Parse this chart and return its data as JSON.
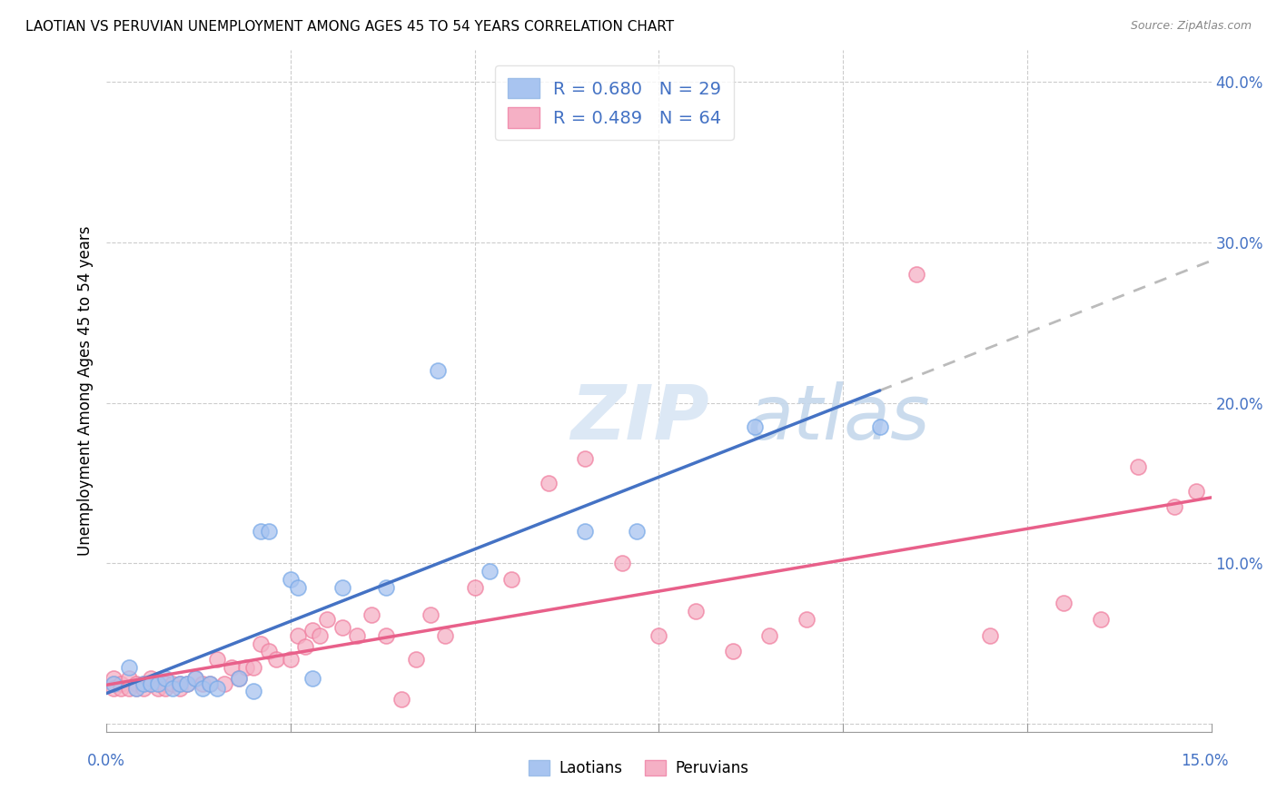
{
  "title": "LAOTIAN VS PERUVIAN UNEMPLOYMENT AMONG AGES 45 TO 54 YEARS CORRELATION CHART",
  "source": "Source: ZipAtlas.com",
  "ylabel": "Unemployment Among Ages 45 to 54 years",
  "xlim": [
    0.0,
    0.15
  ],
  "ylim": [
    -0.005,
    0.42
  ],
  "laotian_color": "#a8c4f0",
  "laotian_edge_color": "#7aaae8",
  "peruvian_color": "#f5b0c5",
  "peruvian_edge_color": "#f080a0",
  "laotian_line_color": "#4472c4",
  "peruvian_line_color": "#e8608a",
  "dash_line_color": "#bbbbbb",
  "r_laotian": 0.68,
  "n_laotian": 29,
  "r_peruvian": 0.489,
  "n_peruvian": 64,
  "legend_label_laotian": "Laotians",
  "legend_label_peruvian": "Peruvians",
  "laotian_x": [
    0.001,
    0.003,
    0.004,
    0.005,
    0.006,
    0.007,
    0.008,
    0.009,
    0.01,
    0.011,
    0.012,
    0.013,
    0.014,
    0.015,
    0.018,
    0.02,
    0.021,
    0.022,
    0.025,
    0.026,
    0.028,
    0.032,
    0.038,
    0.045,
    0.052,
    0.065,
    0.072,
    0.088,
    0.105
  ],
  "laotian_y": [
    0.025,
    0.035,
    0.022,
    0.025,
    0.025,
    0.025,
    0.028,
    0.022,
    0.025,
    0.025,
    0.028,
    0.022,
    0.025,
    0.022,
    0.028,
    0.02,
    0.12,
    0.12,
    0.09,
    0.085,
    0.028,
    0.085,
    0.085,
    0.22,
    0.095,
    0.12,
    0.12,
    0.185,
    0.185
  ],
  "peruvian_x": [
    0.001,
    0.001,
    0.001,
    0.002,
    0.002,
    0.003,
    0.003,
    0.004,
    0.004,
    0.005,
    0.005,
    0.006,
    0.006,
    0.007,
    0.007,
    0.008,
    0.008,
    0.009,
    0.01,
    0.01,
    0.011,
    0.012,
    0.013,
    0.014,
    0.015,
    0.016,
    0.017,
    0.018,
    0.019,
    0.02,
    0.021,
    0.022,
    0.023,
    0.025,
    0.026,
    0.027,
    0.028,
    0.029,
    0.03,
    0.032,
    0.034,
    0.036,
    0.038,
    0.04,
    0.042,
    0.044,
    0.046,
    0.05,
    0.055,
    0.06,
    0.065,
    0.07,
    0.075,
    0.08,
    0.085,
    0.09,
    0.095,
    0.11,
    0.12,
    0.13,
    0.135,
    0.14,
    0.145,
    0.148
  ],
  "peruvian_y": [
    0.025,
    0.028,
    0.022,
    0.025,
    0.022,
    0.028,
    0.022,
    0.025,
    0.022,
    0.025,
    0.022,
    0.025,
    0.028,
    0.025,
    0.022,
    0.025,
    0.022,
    0.025,
    0.025,
    0.022,
    0.025,
    0.028,
    0.025,
    0.025,
    0.04,
    0.025,
    0.035,
    0.028,
    0.035,
    0.035,
    0.05,
    0.045,
    0.04,
    0.04,
    0.055,
    0.048,
    0.058,
    0.055,
    0.065,
    0.06,
    0.055,
    0.068,
    0.055,
    0.015,
    0.04,
    0.068,
    0.055,
    0.085,
    0.09,
    0.15,
    0.165,
    0.1,
    0.055,
    0.07,
    0.045,
    0.055,
    0.065,
    0.28,
    0.055,
    0.075,
    0.065,
    0.16,
    0.135,
    0.145
  ]
}
